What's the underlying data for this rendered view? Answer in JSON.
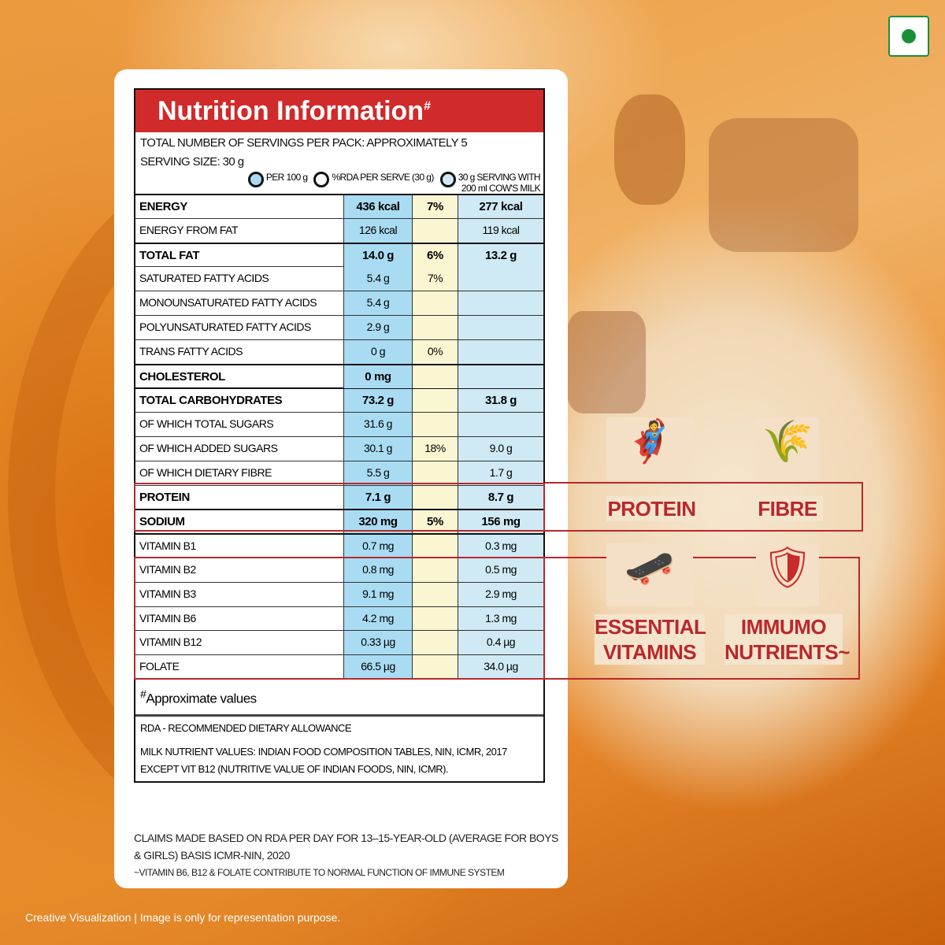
{
  "title": "Nutrition Information",
  "title_mark": "#",
  "servings": "TOTAL NUMBER OF SERVINGS PER PACK: APPROXIMATELY 5",
  "serving_size": "SERVING SIZE: 30 g",
  "legend": [
    "PER 100 g",
    "%RDA PER SERVE (30 g)",
    "30 g SERVING WITH",
    "200 ml COW'S MILK"
  ],
  "colors": {
    "per100": "#a9dcf3",
    "rda": "#fbf6d2",
    "milk": "#cfeaf5",
    "red": "#d12a2a"
  },
  "rows": [
    {
      "label": "ENERGY",
      "per100": "436 kcal",
      "rda": "7%",
      "milk": "277 kcal"
    },
    {
      "label": "ENERGY FROM FAT",
      "per100": "126 kcal",
      "rda": "",
      "milk": "119 kcal"
    },
    {
      "label": "TOTAL FAT",
      "per100": "14.0 g",
      "rda": "6%",
      "milk": "13.2 g"
    },
    {
      "label": "SATURATED FATTY ACIDS",
      "per100": "5.4 g",
      "rda": "7%",
      "milk": ""
    },
    {
      "label": "MONOUNSATURATED FATTY ACIDS",
      "per100": "5.4 g",
      "rda": "",
      "milk": ""
    },
    {
      "label": "POLYUNSATURATED FATTY ACIDS",
      "per100": "2.9 g",
      "rda": "",
      "milk": ""
    },
    {
      "label": "TRANS FATTY ACIDS",
      "per100": "0 g",
      "rda": "0%",
      "milk": ""
    },
    {
      "label": "CHOLESTEROL",
      "per100": "0 mg",
      "rda": "",
      "milk": ""
    },
    {
      "label": "TOTAL CARBOHYDRATES",
      "per100": "73.2 g",
      "rda": "",
      "milk": "31.8 g"
    },
    {
      "label": "OF WHICH TOTAL SUGARS",
      "per100": "31.6 g",
      "rda": "",
      "milk": ""
    },
    {
      "label": "OF WHICH ADDED SUGARS",
      "per100": "30.1 g",
      "rda": "18%",
      "milk": "9.0 g"
    },
    {
      "label": "OF WHICH DIETARY FIBRE",
      "per100": "5.5 g",
      "rda": "",
      "milk": "1.7 g"
    },
    {
      "label": "PROTEIN",
      "per100": "7.1 g",
      "rda": "",
      "milk": "8.7 g"
    },
    {
      "label": "SODIUM",
      "per100": "320 mg",
      "rda": "5%",
      "milk": "156 mg"
    },
    {
      "label": "VITAMIN B1",
      "per100": "0.7 mg",
      "rda": "",
      "milk": "0.3 mg"
    },
    {
      "label": "VITAMIN B2",
      "per100": "0.8 mg",
      "rda": "",
      "milk": "0.5 mg"
    },
    {
      "label": "VITAMIN B3",
      "per100": "9.1 mg",
      "rda": "",
      "milk": "2.9 mg"
    },
    {
      "label": "VITAMIN B6",
      "per100": "4.2 mg",
      "rda": "",
      "milk": "1.3 mg"
    },
    {
      "label": "VITAMIN B12",
      "per100": "0.33 µg",
      "rda": "",
      "milk": "0.4 µg"
    },
    {
      "label": "FOLATE",
      "per100": "66.5 µg",
      "rda": "",
      "milk": "34.0 µg"
    }
  ],
  "approx": "Approximate values",
  "approx_mark": "#",
  "rda_note": "RDA - RECOMMENDED DIETARY ALLOWANCE",
  "milk_note": "MILK NUTRIENT VALUES: INDIAN FOOD COMPOSITION TABLES, NIN, ICMR, 2017 EXCEPT VIT B12 (NUTRITIVE VALUE OF INDIAN FOODS, NIN, ICMR).",
  "claims": "CLAIMS MADE BASED ON RDA PER DAY FOR 13–15-YEAR-OLD (AVERAGE FOR BOYS & GIRLS) BASIS ICMR-NIN, 2020",
  "immune_note": "~VITAMIN B6, B12 & FOLATE CONTRIBUTE TO NORMAL FUNCTION OF IMMUNE SYSTEM",
  "badges": {
    "protein": "PROTEIN",
    "fibre": "FIBRE",
    "vitamins": "ESSENTIAL VITAMINS",
    "immuno": "IMMUMO NUTRIENTS~"
  },
  "disclaimer": "Creative Visualization | Image is only for representation purpose."
}
